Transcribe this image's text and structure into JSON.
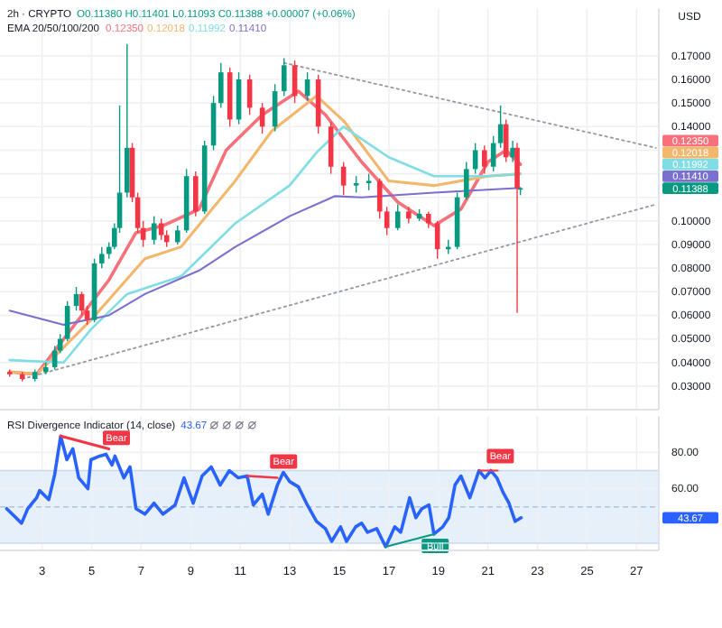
{
  "chart_data": [
    {
      "type": "candlestick",
      "title": "2h · CRYPTO",
      "subtitle": "O0.11380 H0.11401 L0.11093 C0.11388 +0.00007 (+0.06%)",
      "ylabel": "USD",
      "x": [
        1.69,
        2.2,
        2.71,
        3.15,
        3.51,
        3.73,
        4.02,
        4.38,
        4.6,
        4.82,
        5.11,
        5.41,
        5.7,
        5.92,
        6.13,
        6.43,
        6.64,
        6.86,
        7.08,
        7.52,
        7.81,
        8.03,
        8.47,
        8.83,
        9.2,
        9.56,
        9.92,
        10.22,
        10.58,
        10.94,
        11.38,
        11.89,
        12.4,
        12.77,
        13.2,
        13.71,
        14.15,
        14.66,
        15.17,
        15.68,
        16.19,
        16.63,
        16.92,
        17.36,
        17.8,
        18.23,
        18.6,
        18.96,
        19.4,
        19.76,
        20.13,
        20.49,
        20.86,
        21.22,
        21.51,
        21.73,
        22.0,
        22.18,
        22.31
      ],
      "ohlc": [
        [
          0.036,
          0.037,
          0.034,
          0.035
        ],
        [
          0.035,
          0.036,
          0.032,
          0.033
        ],
        [
          0.033,
          0.037,
          0.032,
          0.036
        ],
        [
          0.036,
          0.04,
          0.035,
          0.038
        ],
        [
          0.038,
          0.047,
          0.037,
          0.045
        ],
        [
          0.045,
          0.052,
          0.044,
          0.05
        ],
        [
          0.05,
          0.066,
          0.049,
          0.064
        ],
        [
          0.064,
          0.072,
          0.062,
          0.069
        ],
        [
          0.069,
          0.07,
          0.06,
          0.062
        ],
        [
          0.062,
          0.064,
          0.056,
          0.058
        ],
        [
          0.058,
          0.084,
          0.057,
          0.082
        ],
        [
          0.082,
          0.089,
          0.08,
          0.086
        ],
        [
          0.086,
          0.091,
          0.084,
          0.089
        ],
        [
          0.089,
          0.099,
          0.088,
          0.097
        ],
        [
          0.097,
          0.149,
          0.095,
          0.112
        ],
        [
          0.112,
          0.175,
          0.11,
          0.131
        ],
        [
          0.131,
          0.133,
          0.108,
          0.11
        ],
        [
          0.11,
          0.112,
          0.095,
          0.097
        ],
        [
          0.097,
          0.1,
          0.089,
          0.092
        ],
        [
          0.092,
          0.102,
          0.09,
          0.099
        ],
        [
          0.099,
          0.101,
          0.092,
          0.094
        ],
        [
          0.094,
          0.096,
          0.089,
          0.091
        ],
        [
          0.091,
          0.098,
          0.09,
          0.096
        ],
        [
          0.096,
          0.122,
          0.095,
          0.119
        ],
        [
          0.119,
          0.121,
          0.102,
          0.104
        ],
        [
          0.104,
          0.134,
          0.103,
          0.132
        ],
        [
          0.132,
          0.153,
          0.13,
          0.15
        ],
        [
          0.15,
          0.167,
          0.148,
          0.163
        ],
        [
          0.163,
          0.165,
          0.14,
          0.143
        ],
        [
          0.143,
          0.163,
          0.141,
          0.16
        ],
        [
          0.16,
          0.162,
          0.145,
          0.148
        ],
        [
          0.148,
          0.15,
          0.137,
          0.14
        ],
        [
          0.14,
          0.158,
          0.138,
          0.155
        ],
        [
          0.155,
          0.169,
          0.153,
          0.166
        ],
        [
          0.166,
          0.168,
          0.15,
          0.153
        ],
        [
          0.153,
          0.163,
          0.151,
          0.16
        ],
        [
          0.16,
          0.162,
          0.137,
          0.14
        ],
        [
          0.14,
          0.142,
          0.12,
          0.123
        ],
        [
          0.123,
          0.125,
          0.111,
          0.115
        ],
        [
          0.115,
          0.119,
          0.112,
          0.116
        ],
        [
          0.116,
          0.12,
          0.113,
          0.117
        ],
        [
          0.117,
          0.118,
          0.101,
          0.104
        ],
        [
          0.104,
          0.106,
          0.094,
          0.097
        ],
        [
          0.097,
          0.107,
          0.096,
          0.104
        ],
        [
          0.104,
          0.106,
          0.099,
          0.101
        ],
        [
          0.101,
          0.105,
          0.1,
          0.103
        ],
        [
          0.103,
          0.104,
          0.097,
          0.099
        ],
        [
          0.099,
          0.1,
          0.084,
          0.088
        ],
        [
          0.088,
          0.092,
          0.086,
          0.089
        ],
        [
          0.089,
          0.112,
          0.088,
          0.11
        ],
        [
          0.11,
          0.125,
          0.109,
          0.122
        ],
        [
          0.122,
          0.133,
          0.12,
          0.13
        ],
        [
          0.13,
          0.132,
          0.12,
          0.123
        ],
        [
          0.123,
          0.136,
          0.121,
          0.133
        ],
        [
          0.133,
          0.149,
          0.131,
          0.141
        ],
        [
          0.141,
          0.143,
          0.125,
          0.127
        ],
        [
          0.127,
          0.134,
          0.125,
          0.131
        ],
        [
          0.131,
          0.133,
          0.061,
          0.1138
        ],
        [
          0.1138,
          0.11401,
          0.11093,
          0.11388
        ]
      ],
      "colors": [
        "#f23645",
        "#f23645",
        "#089981",
        "#089981",
        "#089981",
        "#089981",
        "#089981",
        "#089981",
        "#f23645",
        "#f23645",
        "#089981",
        "#089981",
        "#089981",
        "#089981",
        "#089981",
        "#089981",
        "#f23645",
        "#f23645",
        "#f23645",
        "#089981",
        "#f23645",
        "#f23645",
        "#089981",
        "#089981",
        "#f23645",
        "#089981",
        "#089981",
        "#089981",
        "#f23645",
        "#089981",
        "#f23645",
        "#f23645",
        "#089981",
        "#089981",
        "#f23645",
        "#089981",
        "#f23645",
        "#f23645",
        "#f23645",
        "#089981",
        "#089981",
        "#f23645",
        "#f23645",
        "#089981",
        "#f23645",
        "#089981",
        "#f23645",
        "#f23645",
        "#089981",
        "#089981",
        "#089981",
        "#089981",
        "#f23645",
        "#089981",
        "#089981",
        "#f23645",
        "#089981",
        "#f23645",
        "#089981"
      ],
      "series": [
        {
          "type": "line",
          "color": "#f7707a",
          "x": [
            1.69,
            2.78,
            4.24,
            5.7,
            6.79,
            7.88,
            9.34,
            10.43,
            11.89,
            13.35,
            14.44,
            15.9,
            17.36,
            18.82,
            19.91,
            21.0,
            21.73,
            22.31
          ],
          "values": [
            0.036,
            0.035,
            0.055,
            0.075,
            0.095,
            0.098,
            0.105,
            0.13,
            0.145,
            0.155,
            0.145,
            0.125,
            0.108,
            0.098,
            0.105,
            0.125,
            0.13,
            0.124
          ]
        },
        {
          "type": "line",
          "color": "#f2b66d",
          "x": [
            1.69,
            2.78,
            4.97,
            7.15,
            8.61,
            10.8,
            12.26,
            14.08,
            15.17,
            16.99,
            18.82,
            21.0,
            22.31
          ],
          "values": [
            0.036,
            0.035,
            0.058,
            0.084,
            0.089,
            0.117,
            0.138,
            0.153,
            0.1425,
            0.117,
            0.115,
            0.119,
            0.12
          ]
        },
        {
          "type": "line",
          "color": "#7fdde3",
          "x": [
            1.69,
            3.87,
            4.97,
            6.43,
            8.61,
            10.8,
            12.99,
            14.08,
            15.17,
            16.99,
            18.82,
            21.0,
            22.31
          ],
          "values": [
            0.041,
            0.04,
            0.054,
            0.069,
            0.0765,
            0.099,
            0.115,
            0.129,
            0.14,
            0.127,
            0.119,
            0.119,
            0.12
          ]
        },
        {
          "type": "line",
          "color": "#7b6fcf",
          "x": [
            1.69,
            3.87,
            5.7,
            7.15,
            9.34,
            10.8,
            12.99,
            14.81,
            15.9,
            18.82,
            22.31
          ],
          "values": [
            0.062,
            0.056,
            0.06,
            0.069,
            0.079,
            0.089,
            0.102,
            0.1105,
            0.11,
            0.112,
            0.114
          ]
        },
        {
          "type": "line",
          "color": "#9598a1",
          "line_style": "dotted",
          "x": [
            12.77,
            27.78
          ],
          "values": [
            0.167,
            0.131
          ]
        },
        {
          "type": "line",
          "color": "#9598a1",
          "line_style": "dotted",
          "x": [
            2.2,
            27.78
          ],
          "values": [
            0.033,
            0.107
          ]
        }
      ],
      "annotations": [
        "EMA 20/50/100/200",
        "0.12350",
        "0.12018",
        "0.11992",
        "0.11410",
        "0.11388"
      ],
      "xlim": [
        1.3,
        27.9
      ],
      "ylim": [
        0.02,
        0.19
      ],
      "xticks": [
        3,
        5,
        7,
        9,
        11,
        13,
        15,
        17,
        19,
        21,
        23,
        25,
        27
      ],
      "yticks": [
        {
          "value": 0.03,
          "label": "0.03000"
        },
        {
          "value": 0.04,
          "label": "0.04000"
        },
        {
          "value": 0.05,
          "label": "0.05000"
        },
        {
          "value": 0.06,
          "label": "0.06000"
        },
        {
          "value": 0.07,
          "label": "0.07000"
        },
        {
          "value": 0.08,
          "label": "0.08000"
        },
        {
          "value": 0.09,
          "label": "0.09000"
        },
        {
          "value": 0.1,
          "label": "0.10000"
        },
        {
          "value": 0.11,
          "label": null
        },
        {
          "value": 0.12,
          "label": null
        },
        {
          "value": 0.13,
          "label": null
        },
        {
          "value": 0.14,
          "label": "0.14000"
        },
        {
          "value": 0.15,
          "label": "0.15000"
        },
        {
          "value": 0.16,
          "label": "0.16000"
        },
        {
          "value": 0.17,
          "label": "0.17000"
        }
      ],
      "grid": true,
      "tick_labels": "y"
    },
    {
      "type": "line",
      "title": "RSI Divergence Indicator (14, close)",
      "series": [
        {
          "color": "#2962ff",
          "x": [
            1.57,
            2.17,
            2.42,
            2.78,
            2.9,
            3.27,
            3.51,
            3.75,
            4.0,
            4.24,
            4.48,
            4.85,
            4.97,
            5.33,
            5.58,
            5.82,
            5.94,
            6.3,
            6.55,
            6.79,
            7.15,
            7.52,
            7.88,
            8.37,
            8.73,
            9.1,
            9.46,
            9.83,
            10.19,
            10.56,
            10.92,
            11.28,
            11.53,
            11.89,
            12.13,
            12.5,
            12.74,
            12.99,
            13.35,
            13.71,
            14.08,
            14.44,
            14.69,
            15.05,
            15.29,
            15.66,
            15.9,
            16.14,
            16.51,
            16.87,
            17.24,
            17.48,
            17.84,
            18.09,
            18.33,
            18.62,
            18.82,
            19.18,
            19.42,
            19.67,
            19.91,
            20.27,
            20.64,
            20.88,
            21.12,
            21.36,
            21.61,
            21.85,
            22.1,
            22.34
          ],
          "values": [
            49,
            41,
            49,
            55,
            59,
            54,
            68,
            89,
            76,
            82,
            66,
            60,
            76,
            78,
            79,
            73,
            78,
            66,
            72,
            49,
            46,
            52,
            46,
            51,
            66,
            52,
            67,
            72,
            62,
            70,
            66,
            67,
            51,
            57,
            46,
            62,
            69,
            64,
            61,
            51,
            42,
            38,
            31,
            39,
            31,
            39,
            41,
            36,
            38,
            28,
            39,
            36,
            55,
            44,
            49,
            51,
            35,
            39,
            44,
            62,
            67,
            55,
            70,
            66,
            70,
            66,
            58,
            52,
            42,
            44
          ]
        },
        {
          "color": "#f23645",
          "x": [
            3.75,
            5.7
          ],
          "values": [
            89,
            82
          ]
        },
        {
          "color": "#f23645",
          "x": [
            11.3,
            12.5
          ],
          "values": [
            67,
            66
          ]
        },
        {
          "color": "#089981",
          "x": [
            16.87,
            18.82
          ],
          "values": [
            28,
            35
          ]
        },
        {
          "color": "#f23645",
          "x": [
            20.64,
            21.4
          ],
          "values": [
            70,
            70
          ]
        }
      ],
      "annotations": [
        "43.67",
        {
          "text": "Bear",
          "x": 6.0,
          "y": 88
        },
        {
          "text": "Bear",
          "x": 12.75,
          "y": 75
        },
        {
          "text": "Bull",
          "x": 18.87,
          "y": 28.5
        },
        {
          "text": "Bear",
          "x": 21.5,
          "y": 78
        }
      ],
      "bands": [
        {
          "axis": "y",
          "from": 30,
          "to": 70,
          "color": "#e6f0fb"
        }
      ],
      "ref_lines": [
        {
          "axis": "y",
          "value": 50,
          "color": "#b2c3d6",
          "line_style": "dashed"
        },
        {
          "axis": "y",
          "value": 30,
          "color": "#c9d8ea"
        },
        {
          "axis": "y",
          "value": 70,
          "color": "#c9d8ea"
        }
      ],
      "xlim": [
        1.3,
        27.9
      ],
      "ylim": [
        26,
        100
      ],
      "xticks": [
        3,
        5,
        7,
        9,
        11,
        13,
        15,
        17,
        19,
        21,
        23,
        25,
        27
      ],
      "yticks": [
        {
          "value": 40,
          "label": null
        },
        {
          "value": 60,
          "label": "60.00"
        },
        {
          "value": 80,
          "label": "80.00"
        }
      ],
      "grid": true
    }
  ]
}
